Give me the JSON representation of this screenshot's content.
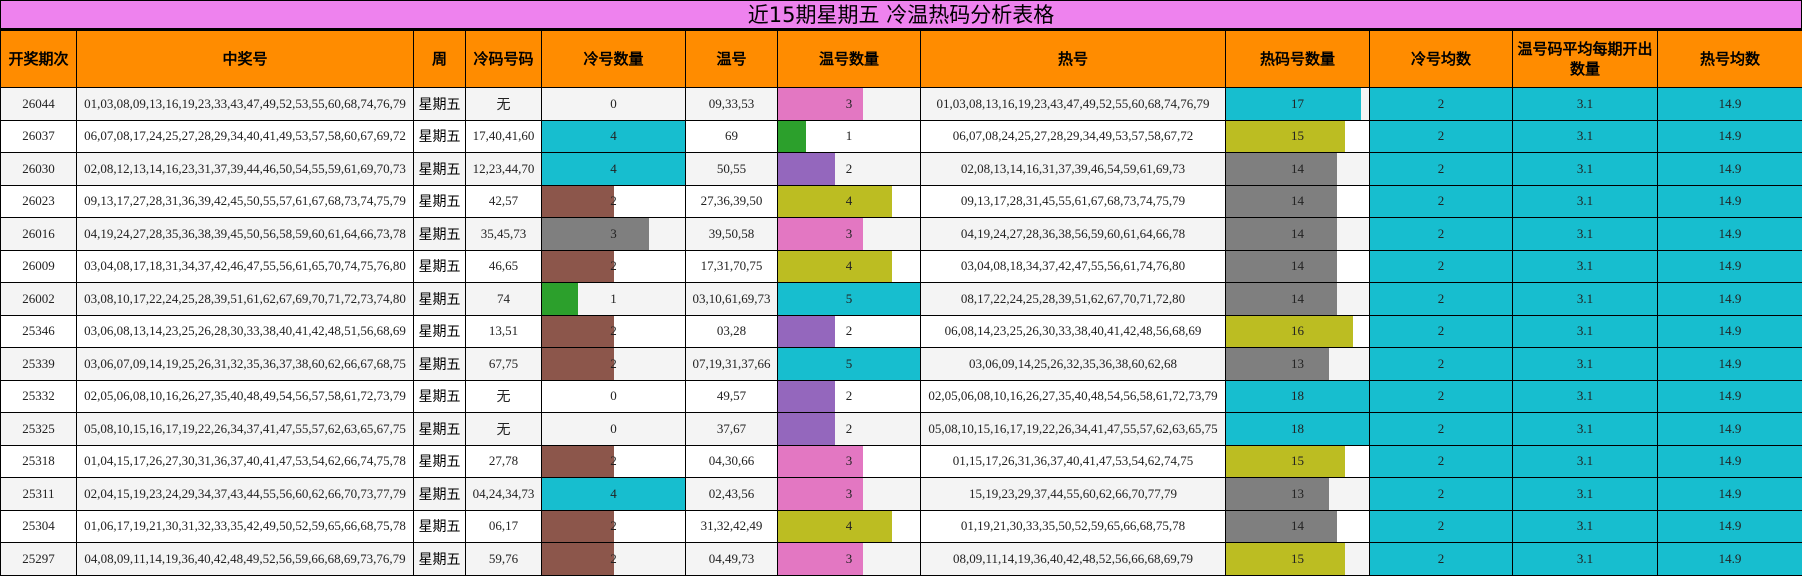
{
  "title": "近15期星期五 冷温热码分析表格",
  "headers": [
    "开奖期次",
    "中奖号",
    "周",
    "冷码号码",
    "冷号数量",
    "温号",
    "温号数量",
    "热号",
    "热码号数量",
    "冷号均数",
    "温号码平均每期开出数量",
    "热号均数"
  ],
  "scales": {
    "cold_max": 4,
    "warm_max": 5,
    "hot_max": 18
  },
  "avg_color": "#17becf",
  "rows": [
    {
      "issue": "26044",
      "numbers": "01,03,08,09,13,16,19,23,33,43,47,49,52,53,55,60,68,74,76,79",
      "week": "星期五",
      "cold": "无",
      "cold_count": "0",
      "cold_color": "",
      "warm": "09,33,53",
      "warm_count": "3",
      "warm_color": "#e377c2",
      "hot": "01,03,08,13,16,19,23,43,47,49,52,55,60,68,74,76,79",
      "hot_count": "17",
      "hot_color": "#17becf",
      "cold_avg": "2",
      "warm_avg": "3.1",
      "hot_avg": "14.9"
    },
    {
      "issue": "26037",
      "numbers": "06,07,08,17,24,25,27,28,29,34,40,41,49,53,57,58,60,67,69,72",
      "week": "星期五",
      "cold": "17,40,41,60",
      "cold_count": "4",
      "cold_color": "#17becf",
      "warm": "69",
      "warm_count": "1",
      "warm_color": "#2ca02c",
      "hot": "06,07,08,24,25,27,28,29,34,49,53,57,58,67,72",
      "hot_count": "15",
      "hot_color": "#bcbd22",
      "cold_avg": "2",
      "warm_avg": "3.1",
      "hot_avg": "14.9"
    },
    {
      "issue": "26030",
      "numbers": "02,08,12,13,14,16,23,31,37,39,44,46,50,54,55,59,61,69,70,73",
      "week": "星期五",
      "cold": "12,23,44,70",
      "cold_count": "4",
      "cold_color": "#17becf",
      "warm": "50,55",
      "warm_count": "2",
      "warm_color": "#9467bd",
      "hot": "02,08,13,14,16,31,37,39,46,54,59,61,69,73",
      "hot_count": "14",
      "hot_color": "#7f7f7f",
      "cold_avg": "2",
      "warm_avg": "3.1",
      "hot_avg": "14.9"
    },
    {
      "issue": "26023",
      "numbers": "09,13,17,27,28,31,36,39,42,45,50,55,57,61,67,68,73,74,75,79",
      "week": "星期五",
      "cold": "42,57",
      "cold_count": "2",
      "cold_color": "#8c564b",
      "warm": "27,36,39,50",
      "warm_count": "4",
      "warm_color": "#bcbd22",
      "hot": "09,13,17,28,31,45,55,61,67,68,73,74,75,79",
      "hot_count": "14",
      "hot_color": "#7f7f7f",
      "cold_avg": "2",
      "warm_avg": "3.1",
      "hot_avg": "14.9"
    },
    {
      "issue": "26016",
      "numbers": "04,19,24,27,28,35,36,38,39,45,50,56,58,59,60,61,64,66,73,78",
      "week": "星期五",
      "cold": "35,45,73",
      "cold_count": "3",
      "cold_color": "#7f7f7f",
      "warm": "39,50,58",
      "warm_count": "3",
      "warm_color": "#e377c2",
      "hot": "04,19,24,27,28,36,38,56,59,60,61,64,66,78",
      "hot_count": "14",
      "hot_color": "#7f7f7f",
      "cold_avg": "2",
      "warm_avg": "3.1",
      "hot_avg": "14.9"
    },
    {
      "issue": "26009",
      "numbers": "03,04,08,17,18,31,34,37,42,46,47,55,56,61,65,70,74,75,76,80",
      "week": "星期五",
      "cold": "46,65",
      "cold_count": "2",
      "cold_color": "#8c564b",
      "warm": "17,31,70,75",
      "warm_count": "4",
      "warm_color": "#bcbd22",
      "hot": "03,04,08,18,34,37,42,47,55,56,61,74,76,80",
      "hot_count": "14",
      "hot_color": "#7f7f7f",
      "cold_avg": "2",
      "warm_avg": "3.1",
      "hot_avg": "14.9"
    },
    {
      "issue": "26002",
      "numbers": "03,08,10,17,22,24,25,28,39,51,61,62,67,69,70,71,72,73,74,80",
      "week": "星期五",
      "cold": "74",
      "cold_count": "1",
      "cold_color": "#2ca02c",
      "warm": "03,10,61,69,73",
      "warm_count": "5",
      "warm_color": "#17becf",
      "hot": "08,17,22,24,25,28,39,51,62,67,70,71,72,80",
      "hot_count": "14",
      "hot_color": "#7f7f7f",
      "cold_avg": "2",
      "warm_avg": "3.1",
      "hot_avg": "14.9"
    },
    {
      "issue": "25346",
      "numbers": "03,06,08,13,14,23,25,26,28,30,33,38,40,41,42,48,51,56,68,69",
      "week": "星期五",
      "cold": "13,51",
      "cold_count": "2",
      "cold_color": "#8c564b",
      "warm": "03,28",
      "warm_count": "2",
      "warm_color": "#9467bd",
      "hot": "06,08,14,23,25,26,30,33,38,40,41,42,48,56,68,69",
      "hot_count": "16",
      "hot_color": "#bcbd22",
      "cold_avg": "2",
      "warm_avg": "3.1",
      "hot_avg": "14.9"
    },
    {
      "issue": "25339",
      "numbers": "03,06,07,09,14,19,25,26,31,32,35,36,37,38,60,62,66,67,68,75",
      "week": "星期五",
      "cold": "67,75",
      "cold_count": "2",
      "cold_color": "#8c564b",
      "warm": "07,19,31,37,66",
      "warm_count": "5",
      "warm_color": "#17becf",
      "hot": "03,06,09,14,25,26,32,35,36,38,60,62,68",
      "hot_count": "13",
      "hot_color": "#7f7f7f",
      "cold_avg": "2",
      "warm_avg": "3.1",
      "hot_avg": "14.9"
    },
    {
      "issue": "25332",
      "numbers": "02,05,06,08,10,16,26,27,35,40,48,49,54,56,57,58,61,72,73,79",
      "week": "星期五",
      "cold": "无",
      "cold_count": "0",
      "cold_color": "",
      "warm": "49,57",
      "warm_count": "2",
      "warm_color": "#9467bd",
      "hot": "02,05,06,08,10,16,26,27,35,40,48,54,56,58,61,72,73,79",
      "hot_count": "18",
      "hot_color": "#17becf",
      "cold_avg": "2",
      "warm_avg": "3.1",
      "hot_avg": "14.9"
    },
    {
      "issue": "25325",
      "numbers": "05,08,10,15,16,17,19,22,26,34,37,41,47,55,57,62,63,65,67,75",
      "week": "星期五",
      "cold": "无",
      "cold_count": "0",
      "cold_color": "",
      "warm": "37,67",
      "warm_count": "2",
      "warm_color": "#9467bd",
      "hot": "05,08,10,15,16,17,19,22,26,34,41,47,55,57,62,63,65,75",
      "hot_count": "18",
      "hot_color": "#17becf",
      "cold_avg": "2",
      "warm_avg": "3.1",
      "hot_avg": "14.9"
    },
    {
      "issue": "25318",
      "numbers": "01,04,15,17,26,27,30,31,36,37,40,41,47,53,54,62,66,74,75,78",
      "week": "星期五",
      "cold": "27,78",
      "cold_count": "2",
      "cold_color": "#8c564b",
      "warm": "04,30,66",
      "warm_count": "3",
      "warm_color": "#e377c2",
      "hot": "01,15,17,26,31,36,37,40,41,47,53,54,62,74,75",
      "hot_count": "15",
      "hot_color": "#bcbd22",
      "cold_avg": "2",
      "warm_avg": "3.1",
      "hot_avg": "14.9"
    },
    {
      "issue": "25311",
      "numbers": "02,04,15,19,23,24,29,34,37,43,44,55,56,60,62,66,70,73,77,79",
      "week": "星期五",
      "cold": "04,24,34,73",
      "cold_count": "4",
      "cold_color": "#17becf",
      "warm": "02,43,56",
      "warm_count": "3",
      "warm_color": "#e377c2",
      "hot": "15,19,23,29,37,44,55,60,62,66,70,77,79",
      "hot_count": "13",
      "hot_color": "#7f7f7f",
      "cold_avg": "2",
      "warm_avg": "3.1",
      "hot_avg": "14.9"
    },
    {
      "issue": "25304",
      "numbers": "01,06,17,19,21,30,31,32,33,35,42,49,50,52,59,65,66,68,75,78",
      "week": "星期五",
      "cold": "06,17",
      "cold_count": "2",
      "cold_color": "#8c564b",
      "warm": "31,32,42,49",
      "warm_count": "4",
      "warm_color": "#bcbd22",
      "hot": "01,19,21,30,33,35,50,52,59,65,66,68,75,78",
      "hot_count": "14",
      "hot_color": "#7f7f7f",
      "cold_avg": "2",
      "warm_avg": "3.1",
      "hot_avg": "14.9"
    },
    {
      "issue": "25297",
      "numbers": "04,08,09,11,14,19,36,40,42,48,49,52,56,59,66,68,69,73,76,79",
      "week": "星期五",
      "cold": "59,76",
      "cold_count": "2",
      "cold_color": "#8c564b",
      "warm": "04,49,73",
      "warm_count": "3",
      "warm_color": "#e377c2",
      "hot": "08,09,11,14,19,36,40,42,48,52,56,66,68,69,79",
      "hot_count": "15",
      "hot_color": "#bcbd22",
      "cold_avg": "2",
      "warm_avg": "3.1",
      "hot_avg": "14.9"
    }
  ]
}
